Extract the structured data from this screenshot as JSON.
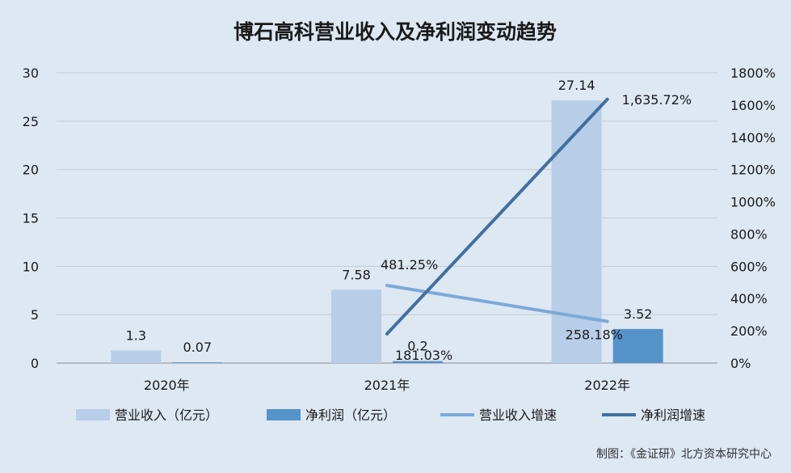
{
  "chart_data": {
    "type": "bar",
    "title": "博石高科营业收入及净利润变动趋势",
    "categories": [
      "2020年",
      "2021年",
      "2022年"
    ],
    "series": [
      {
        "name": "营业收入（亿元）",
        "kind": "bar",
        "axis": "left",
        "color": "#b7cde8",
        "values": [
          1.3,
          7.58,
          27.14
        ],
        "labels": [
          "1.3",
          "7.58",
          "27.14"
        ]
      },
      {
        "name": "净利润（亿元）",
        "kind": "bar",
        "axis": "left",
        "color": "#5593c9",
        "values": [
          0.07,
          0.2,
          3.52
        ],
        "labels": [
          "0.07",
          "0.2",
          "3.52"
        ]
      },
      {
        "name": "营业收入增速",
        "kind": "line",
        "axis": "right",
        "color": "#7ea9d8",
        "values": [
          null,
          481.25,
          258.18
        ],
        "labels": [
          "",
          "481.25%",
          "258.18%"
        ]
      },
      {
        "name": "净利润增速",
        "kind": "line",
        "axis": "right",
        "color": "#41709f",
        "values": [
          null,
          181.03,
          1635.72
        ],
        "labels": [
          "",
          "181.03%",
          "1,635.72%"
        ]
      }
    ],
    "y_left": {
      "min": 0,
      "max": 30,
      "ticks": [
        "0",
        "5",
        "10",
        "15",
        "20",
        "25",
        "30"
      ]
    },
    "y_right": {
      "min": 0,
      "max": 1800,
      "ticks": [
        "0%",
        "200%",
        "400%",
        "600%",
        "800%",
        "1000%",
        "1200%",
        "1400%",
        "1600%",
        "1800%"
      ]
    },
    "grid": true,
    "legend_position": "bottom",
    "source": "制图：《金证研》北方资本研究中心"
  }
}
